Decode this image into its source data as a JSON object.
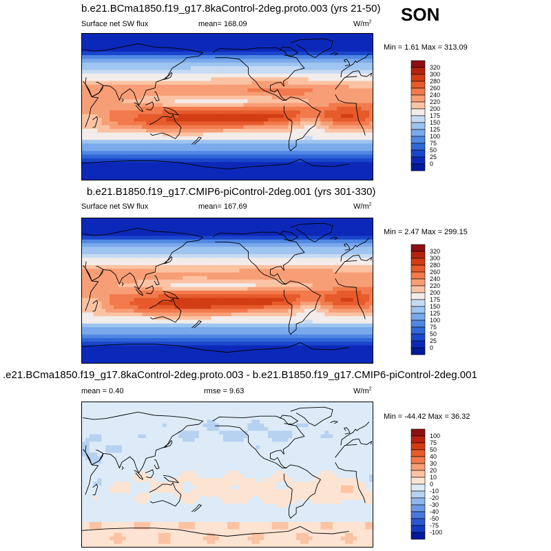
{
  "season": "SON",
  "panels": [
    {
      "id": "p1",
      "title": "b.e21.BCma1850.f19_g17.8kaControl-2deg.proto.003 (yrs 21-50)",
      "left_label": "Surface net SW flux",
      "stat_label": "mean= 168.09",
      "units": "W/m",
      "units_sup": "2",
      "minmax": "Min =   1.61 Max = 313.09",
      "colorbar": {
        "labels": [
          "320",
          "300",
          "280",
          "260",
          "240",
          "220",
          "200",
          "175",
          "150",
          "125",
          "100",
          "75",
          "50",
          "25",
          "0"
        ],
        "colors": [
          "#8e0f12",
          "#b6220f",
          "#d23d14",
          "#e65a2c",
          "#f27a4c",
          "#f79e76",
          "#fbc3a4",
          "#f2ecea",
          "#c7dbf3",
          "#9ec4ef",
          "#7aa9ec",
          "#5088e2",
          "#3066d8",
          "#1a45cc",
          "#0c28b8",
          "#001a9a"
        ]
      },
      "field": "sw"
    },
    {
      "id": "p2",
      "title": "b.e21.B1850.f19_g17.CMIP6-piControl-2deg.001 (yrs 301-330)",
      "left_label": "Surface net SW flux",
      "stat_label": "mean= 167.69",
      "units": "W/m",
      "units_sup": "2",
      "minmax": "Min =   2.47 Max = 299.15",
      "colorbar": {
        "labels": [
          "320",
          "300",
          "280",
          "260",
          "240",
          "220",
          "200",
          "175",
          "150",
          "125",
          "100",
          "75",
          "50",
          "25",
          "0"
        ],
        "colors": [
          "#8e0f12",
          "#b6220f",
          "#d23d14",
          "#e65a2c",
          "#f27a4c",
          "#f79e76",
          "#fbc3a4",
          "#f2ecea",
          "#c7dbf3",
          "#9ec4ef",
          "#7aa9ec",
          "#5088e2",
          "#3066d8",
          "#1a45cc",
          "#0c28b8",
          "#001a9a"
        ]
      },
      "field": "sw"
    },
    {
      "id": "p3",
      "title": ".e21.BCma1850.f19_g17.8kaControl-2deg.proto.003 - b.e21.B1850.f19_g17.CMIP6-piControl-2deg.001",
      "left_label": "mean =   0.40",
      "stat_label": "rmse =   9.63",
      "units": "W/m",
      "units_sup": "2",
      "minmax": "Min = -44.42 Max =  36.32",
      "colorbar": {
        "labels": [
          "100",
          "75",
          "50",
          "40",
          "30",
          "20",
          "10",
          "0",
          "-10",
          "-20",
          "-30",
          "-40",
          "-50",
          "-75",
          "-100"
        ],
        "colors": [
          "#8e0f12",
          "#b6220f",
          "#d23d14",
          "#e65a2c",
          "#f27a4c",
          "#f79e76",
          "#fbc3a4",
          "#fde3d2",
          "#dcebf7",
          "#b7d1f1",
          "#92b6ec",
          "#6e98e5",
          "#4a78dc",
          "#2b56d0",
          "#143ac2",
          "#001a9a"
        ]
      },
      "field": "diff"
    }
  ]
}
